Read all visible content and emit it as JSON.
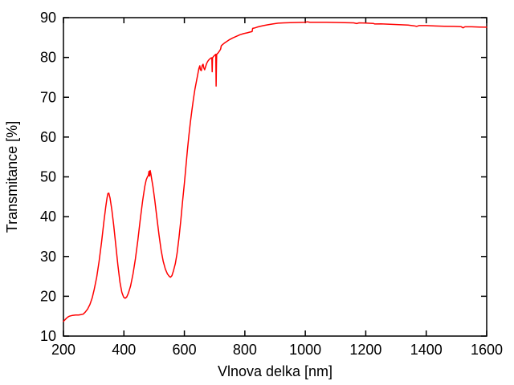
{
  "figure": {
    "background": "#ffffff",
    "border_color": "#000000",
    "text_color": "#000000"
  },
  "chart_data": {
    "type": "line",
    "title": "",
    "xlabel": "Vlnova delka [nm]",
    "ylabel": "Transmitance [%]",
    "xlim": [
      200,
      1600
    ],
    "ylim": [
      10,
      90
    ],
    "xticks": [
      200,
      400,
      600,
      800,
      1000,
      1200,
      1400,
      1600
    ],
    "yticks": [
      10,
      20,
      30,
      40,
      50,
      60,
      70,
      80,
      90
    ],
    "grid": false,
    "legend": "none",
    "series": [
      {
        "name": "Transmitance",
        "color": "#ff0000",
        "points": [
          [
            200,
            13.7
          ],
          [
            205,
            14.1
          ],
          [
            210,
            14.5
          ],
          [
            215,
            14.8
          ],
          [
            220,
            15.0
          ],
          [
            230,
            15.2
          ],
          [
            240,
            15.3
          ],
          [
            250,
            15.3
          ],
          [
            258,
            15.4
          ],
          [
            265,
            15.5
          ],
          [
            272,
            16.0
          ],
          [
            280,
            16.8
          ],
          [
            288,
            18.0
          ],
          [
            295,
            19.6
          ],
          [
            302,
            21.8
          ],
          [
            310,
            24.8
          ],
          [
            318,
            28.8
          ],
          [
            326,
            33.5
          ],
          [
            334,
            38.8
          ],
          [
            340,
            42.5
          ],
          [
            344,
            44.6
          ],
          [
            347,
            45.8
          ],
          [
            350,
            45.9
          ],
          [
            354,
            44.7
          ],
          [
            360,
            41.8
          ],
          [
            366,
            38.0
          ],
          [
            373,
            33.0
          ],
          [
            380,
            27.8
          ],
          [
            387,
            23.5
          ],
          [
            393,
            21.0
          ],
          [
            399,
            19.8
          ],
          [
            404,
            19.5
          ],
          [
            409,
            19.8
          ],
          [
            415,
            20.8
          ],
          [
            422,
            22.6
          ],
          [
            430,
            25.6
          ],
          [
            438,
            29.4
          ],
          [
            446,
            34.0
          ],
          [
            454,
            39.2
          ],
          [
            462,
            44.0
          ],
          [
            469,
            47.6
          ],
          [
            474,
            49.3
          ],
          [
            478,
            50.0
          ],
          [
            481,
            50.4
          ],
          [
            483,
            51.4
          ],
          [
            485,
            50.2
          ],
          [
            487,
            51.6
          ],
          [
            489,
            50.8
          ],
          [
            492,
            49.4
          ],
          [
            496,
            47.6
          ],
          [
            502,
            44.2
          ],
          [
            509,
            39.8
          ],
          [
            516,
            35.4
          ],
          [
            523,
            31.6
          ],
          [
            530,
            28.8
          ],
          [
            537,
            26.8
          ],
          [
            544,
            25.6
          ],
          [
            550,
            25.0
          ],
          [
            554,
            24.8
          ],
          [
            559,
            25.2
          ],
          [
            564,
            26.4
          ],
          [
            570,
            28.2
          ],
          [
            576,
            30.8
          ],
          [
            582,
            34.6
          ],
          [
            588,
            39.0
          ],
          [
            594,
            43.8
          ],
          [
            600,
            48.4
          ],
          [
            605,
            52.6
          ],
          [
            610,
            56.6
          ],
          [
            615,
            60.4
          ],
          [
            620,
            63.8
          ],
          [
            625,
            66.8
          ],
          [
            630,
            69.6
          ],
          [
            635,
            72.0
          ],
          [
            640,
            74.0
          ],
          [
            644,
            75.6
          ],
          [
            648,
            77.2
          ],
          [
            651,
            77.9
          ],
          [
            653,
            76.9
          ],
          [
            656,
            76.7
          ],
          [
            659,
            78.0
          ],
          [
            662,
            78.3
          ],
          [
            664,
            77.4
          ],
          [
            667,
            76.9
          ],
          [
            670,
            77.6
          ],
          [
            673,
            78.4
          ],
          [
            677,
            79.0
          ],
          [
            681,
            79.4
          ],
          [
            685,
            79.7
          ],
          [
            689,
            79.9
          ],
          [
            691,
            79.9
          ],
          [
            692,
            76.4
          ],
          [
            693,
            79.9
          ],
          [
            697,
            80.3
          ],
          [
            701,
            80.6
          ],
          [
            704,
            80.8
          ],
          [
            705,
            72.8
          ],
          [
            706,
            78.0
          ],
          [
            707,
            80.8
          ],
          [
            711,
            81.1
          ],
          [
            716,
            81.6
          ],
          [
            720,
            82.1
          ],
          [
            722,
            82.9
          ],
          [
            726,
            83.2
          ],
          [
            732,
            83.6
          ],
          [
            740,
            84.0
          ],
          [
            750,
            84.5
          ],
          [
            760,
            84.9
          ],
          [
            772,
            85.3
          ],
          [
            784,
            85.7
          ],
          [
            796,
            86.0
          ],
          [
            808,
            86.2
          ],
          [
            818,
            86.4
          ],
          [
            824,
            86.5
          ],
          [
            826,
            87.3
          ],
          [
            832,
            87.4
          ],
          [
            840,
            87.6
          ],
          [
            850,
            87.8
          ],
          [
            862,
            88.0
          ],
          [
            876,
            88.2
          ],
          [
            892,
            88.4
          ],
          [
            910,
            88.6
          ],
          [
            930,
            88.7
          ],
          [
            950,
            88.75
          ],
          [
            975,
            88.8
          ],
          [
            1000,
            88.85
          ],
          [
            1007,
            88.95
          ],
          [
            1015,
            88.85
          ],
          [
            1040,
            88.85
          ],
          [
            1070,
            88.85
          ],
          [
            1100,
            88.8
          ],
          [
            1130,
            88.75
          ],
          [
            1160,
            88.7
          ],
          [
            1170,
            88.5
          ],
          [
            1178,
            88.7
          ],
          [
            1200,
            88.65
          ],
          [
            1225,
            88.55
          ],
          [
            1230,
            88.4
          ],
          [
            1250,
            88.45
          ],
          [
            1280,
            88.35
          ],
          [
            1310,
            88.25
          ],
          [
            1340,
            88.15
          ],
          [
            1360,
            87.95
          ],
          [
            1368,
            87.8
          ],
          [
            1376,
            88.0
          ],
          [
            1400,
            88.0
          ],
          [
            1430,
            87.9
          ],
          [
            1460,
            87.85
          ],
          [
            1490,
            87.8
          ],
          [
            1515,
            87.75
          ],
          [
            1522,
            87.45
          ],
          [
            1528,
            87.7
          ],
          [
            1550,
            87.7
          ],
          [
            1575,
            87.65
          ],
          [
            1600,
            87.6
          ]
        ]
      }
    ]
  }
}
